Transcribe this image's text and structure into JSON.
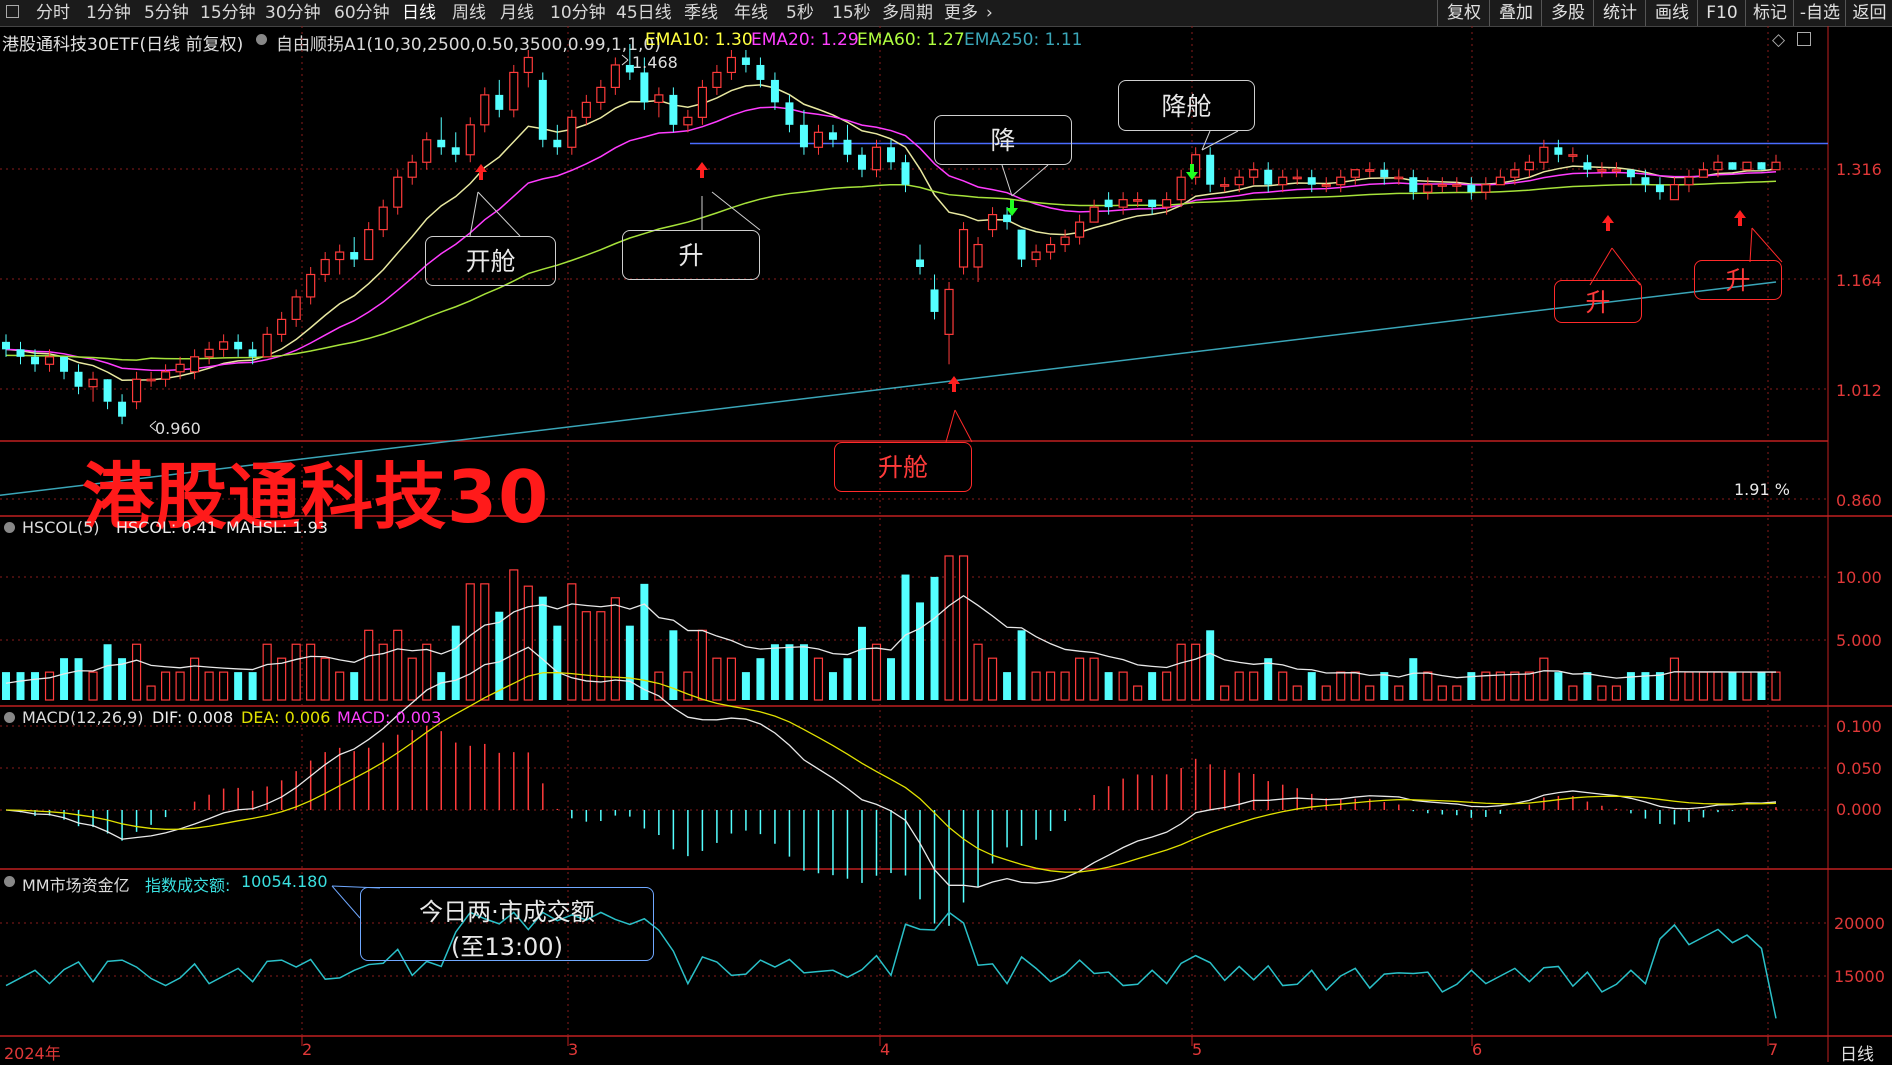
{
  "toolbar": {
    "left_tabs": [
      {
        "label": "分时"
      },
      {
        "label": "1分钟"
      },
      {
        "label": "5分钟"
      },
      {
        "label": "15分钟"
      },
      {
        "label": "30分钟"
      },
      {
        "label": "60分钟"
      },
      {
        "label": "日线",
        "active": true
      },
      {
        "label": "周线"
      },
      {
        "label": "月线"
      },
      {
        "label": "10分钟"
      },
      {
        "label": "45日线"
      },
      {
        "label": "季线"
      },
      {
        "label": "年线"
      },
      {
        "label": "5秒"
      },
      {
        "label": "15秒"
      },
      {
        "label": "多周期"
      },
      {
        "label": "更多"
      }
    ],
    "right_buttons": [
      {
        "label": "复权"
      },
      {
        "label": "叠加"
      },
      {
        "label": "多股"
      },
      {
        "label": "统计"
      },
      {
        "label": "画线"
      },
      {
        "label": "F10"
      },
      {
        "label": "标记"
      },
      {
        "label": "-自选"
      },
      {
        "label": "返回"
      }
    ]
  },
  "main_header": {
    "security": "港股通科技30ETF(日线 前复权)",
    "indicator": "自由顺拐A1(10,30,2500,0.50,3500,0.99,1,1,0)",
    "ema10": "EMA10: 1.30",
    "ema20": "EMA20: 1.29",
    "ema60": "EMA60: 1.27",
    "ema250": "EMA250: 1.11"
  },
  "price_axis": {
    "ticks": [
      "1.316",
      "1.164",
      "1.012",
      "0.860"
    ]
  },
  "price_annotations": {
    "high": "1.468",
    "low": "0.960",
    "pct": "1.91 %"
  },
  "big_title": "港股通科技30",
  "callouts": {
    "kaicang": "开舱",
    "sheng1": "升",
    "jiang": "降",
    "jiangcang": "降舱",
    "shengcang": "升舱",
    "sheng2": "升",
    "sheng3": "升",
    "turnover_line1": "今日两·市成交额",
    "turnover_line2": "(至13:00)"
  },
  "hscol": {
    "name": "HSCOL(5)",
    "value": "HSCOL: 0.41",
    "mahsl": "MAHSL: 1.93",
    "ticks": [
      "10.00",
      "5.000"
    ]
  },
  "macd": {
    "name": "MACD(12,26,9)",
    "dif": "DIF: 0.008",
    "dea": "DEA: 0.006",
    "macd": "MACD: 0.003",
    "ticks": [
      "0.100",
      "0.050",
      "0.000"
    ]
  },
  "mm": {
    "name": "MM市场资金亿",
    "label": "指数成交额:",
    "value": "10054.180",
    "ticks": [
      "20000",
      "15000"
    ]
  },
  "x_axis": {
    "labels": [
      "2024年",
      "2",
      "3",
      "4",
      "5",
      "6",
      "7"
    ],
    "corner": "日线"
  },
  "colors": {
    "up": "#ff3b3b",
    "down": "#54ffff",
    "ema10": "#e8e8a0",
    "ema20": "#ff3cff",
    "ema60": "#a6e23a",
    "ema250": "#3aa6b8",
    "hline": "#4a6cff",
    "grid": "#8a1c1c"
  },
  "chart_data": {
    "type": "candlestick",
    "price": {
      "ylim": [
        0.86,
        1.468
      ],
      "candles": [
        {
          "o": 1.07,
          "h": 1.08,
          "l": 1.05,
          "c": 1.06
        },
        {
          "o": 1.06,
          "h": 1.07,
          "l": 1.04,
          "c": 1.05
        },
        {
          "o": 1.05,
          "h": 1.06,
          "l": 1.03,
          "c": 1.04
        },
        {
          "o": 1.04,
          "h": 1.06,
          "l": 1.03,
          "c": 1.05
        },
        {
          "o": 1.05,
          "h": 1.05,
          "l": 1.02,
          "c": 1.03
        },
        {
          "o": 1.03,
          "h": 1.04,
          "l": 1.0,
          "c": 1.01
        },
        {
          "o": 1.01,
          "h": 1.03,
          "l": 0.99,
          "c": 1.02
        },
        {
          "o": 1.02,
          "h": 1.02,
          "l": 0.98,
          "c": 0.99
        },
        {
          "o": 0.99,
          "h": 1.0,
          "l": 0.96,
          "c": 0.97
        },
        {
          "o": 0.99,
          "h": 1.03,
          "l": 0.98,
          "c": 1.02
        },
        {
          "o": 1.02,
          "h": 1.03,
          "l": 1.01,
          "c": 1.02
        },
        {
          "o": 1.02,
          "h": 1.04,
          "l": 1.01,
          "c": 1.03
        },
        {
          "o": 1.03,
          "h": 1.05,
          "l": 1.02,
          "c": 1.04
        },
        {
          "o": 1.03,
          "h": 1.06,
          "l": 1.02,
          "c": 1.05
        },
        {
          "o": 1.05,
          "h": 1.07,
          "l": 1.04,
          "c": 1.06
        },
        {
          "o": 1.06,
          "h": 1.08,
          "l": 1.05,
          "c": 1.07
        },
        {
          "o": 1.07,
          "h": 1.08,
          "l": 1.05,
          "c": 1.06
        },
        {
          "o": 1.06,
          "h": 1.07,
          "l": 1.04,
          "c": 1.05
        },
        {
          "o": 1.05,
          "h": 1.09,
          "l": 1.05,
          "c": 1.08
        },
        {
          "o": 1.08,
          "h": 1.11,
          "l": 1.07,
          "c": 1.1
        },
        {
          "o": 1.1,
          "h": 1.14,
          "l": 1.09,
          "c": 1.13
        },
        {
          "o": 1.13,
          "h": 1.17,
          "l": 1.12,
          "c": 1.16
        },
        {
          "o": 1.16,
          "h": 1.19,
          "l": 1.15,
          "c": 1.18
        },
        {
          "o": 1.18,
          "h": 1.2,
          "l": 1.16,
          "c": 1.19
        },
        {
          "o": 1.19,
          "h": 1.21,
          "l": 1.17,
          "c": 1.18
        },
        {
          "o": 1.18,
          "h": 1.23,
          "l": 1.18,
          "c": 1.22
        },
        {
          "o": 1.22,
          "h": 1.26,
          "l": 1.21,
          "c": 1.25
        },
        {
          "o": 1.25,
          "h": 1.3,
          "l": 1.24,
          "c": 1.29
        },
        {
          "o": 1.29,
          "h": 1.32,
          "l": 1.28,
          "c": 1.31
        },
        {
          "o": 1.31,
          "h": 1.35,
          "l": 1.3,
          "c": 1.34
        },
        {
          "o": 1.34,
          "h": 1.37,
          "l": 1.32,
          "c": 1.33
        },
        {
          "o": 1.33,
          "h": 1.35,
          "l": 1.31,
          "c": 1.32
        },
        {
          "o": 1.32,
          "h": 1.37,
          "l": 1.31,
          "c": 1.36
        },
        {
          "o": 1.36,
          "h": 1.41,
          "l": 1.35,
          "c": 1.4
        },
        {
          "o": 1.4,
          "h": 1.42,
          "l": 1.37,
          "c": 1.38
        },
        {
          "o": 1.38,
          "h": 1.44,
          "l": 1.37,
          "c": 1.43
        },
        {
          "o": 1.43,
          "h": 1.46,
          "l": 1.41,
          "c": 1.45
        },
        {
          "o": 1.42,
          "h": 1.43,
          "l": 1.33,
          "c": 1.34
        },
        {
          "o": 1.34,
          "h": 1.36,
          "l": 1.32,
          "c": 1.33
        },
        {
          "o": 1.33,
          "h": 1.38,
          "l": 1.32,
          "c": 1.37
        },
        {
          "o": 1.37,
          "h": 1.4,
          "l": 1.36,
          "c": 1.39
        },
        {
          "o": 1.39,
          "h": 1.42,
          "l": 1.38,
          "c": 1.41
        },
        {
          "o": 1.41,
          "h": 1.45,
          "l": 1.4,
          "c": 1.44
        },
        {
          "o": 1.44,
          "h": 1.468,
          "l": 1.42,
          "c": 1.43
        },
        {
          "o": 1.43,
          "h": 1.45,
          "l": 1.38,
          "c": 1.39
        },
        {
          "o": 1.39,
          "h": 1.41,
          "l": 1.37,
          "c": 1.4
        },
        {
          "o": 1.4,
          "h": 1.41,
          "l": 1.35,
          "c": 1.36
        },
        {
          "o": 1.36,
          "h": 1.38,
          "l": 1.35,
          "c": 1.37
        },
        {
          "o": 1.37,
          "h": 1.42,
          "l": 1.36,
          "c": 1.41
        },
        {
          "o": 1.41,
          "h": 1.44,
          "l": 1.4,
          "c": 1.43
        },
        {
          "o": 1.43,
          "h": 1.46,
          "l": 1.42,
          "c": 1.45
        },
        {
          "o": 1.45,
          "h": 1.46,
          "l": 1.43,
          "c": 1.44
        },
        {
          "o": 1.44,
          "h": 1.45,
          "l": 1.41,
          "c": 1.42
        },
        {
          "o": 1.42,
          "h": 1.43,
          "l": 1.38,
          "c": 1.39
        },
        {
          "o": 1.39,
          "h": 1.4,
          "l": 1.35,
          "c": 1.36
        },
        {
          "o": 1.36,
          "h": 1.38,
          "l": 1.32,
          "c": 1.33
        },
        {
          "o": 1.33,
          "h": 1.36,
          "l": 1.32,
          "c": 1.35
        },
        {
          "o": 1.35,
          "h": 1.36,
          "l": 1.33,
          "c": 1.34
        },
        {
          "o": 1.34,
          "h": 1.36,
          "l": 1.31,
          "c": 1.32
        },
        {
          "o": 1.32,
          "h": 1.33,
          "l": 1.29,
          "c": 1.3
        },
        {
          "o": 1.3,
          "h": 1.34,
          "l": 1.29,
          "c": 1.33
        },
        {
          "o": 1.33,
          "h": 1.34,
          "l": 1.3,
          "c": 1.31
        },
        {
          "o": 1.31,
          "h": 1.32,
          "l": 1.27,
          "c": 1.28
        },
        {
          "o": 1.18,
          "h": 1.2,
          "l": 1.16,
          "c": 1.17
        },
        {
          "o": 1.14,
          "h": 1.16,
          "l": 1.1,
          "c": 1.11
        },
        {
          "o": 1.08,
          "h": 1.15,
          "l": 1.04,
          "c": 1.14
        },
        {
          "o": 1.17,
          "h": 1.23,
          "l": 1.16,
          "c": 1.22
        },
        {
          "o": 1.17,
          "h": 1.21,
          "l": 1.15,
          "c": 1.2
        },
        {
          "o": 1.22,
          "h": 1.25,
          "l": 1.21,
          "c": 1.24
        },
        {
          "o": 1.24,
          "h": 1.25,
          "l": 1.22,
          "c": 1.23
        },
        {
          "o": 1.22,
          "h": 1.22,
          "l": 1.17,
          "c": 1.18
        },
        {
          "o": 1.18,
          "h": 1.2,
          "l": 1.17,
          "c": 1.19
        },
        {
          "o": 1.19,
          "h": 1.21,
          "l": 1.18,
          "c": 1.2
        },
        {
          "o": 1.2,
          "h": 1.22,
          "l": 1.19,
          "c": 1.21
        },
        {
          "o": 1.21,
          "h": 1.24,
          "l": 1.2,
          "c": 1.23
        },
        {
          "o": 1.23,
          "h": 1.26,
          "l": 1.23,
          "c": 1.25
        },
        {
          "o": 1.26,
          "h": 1.27,
          "l": 1.24,
          "c": 1.25
        },
        {
          "o": 1.25,
          "h": 1.27,
          "l": 1.24,
          "c": 1.26
        },
        {
          "o": 1.26,
          "h": 1.27,
          "l": 1.25,
          "c": 1.26
        },
        {
          "o": 1.26,
          "h": 1.26,
          "l": 1.24,
          "c": 1.25
        },
        {
          "o": 1.25,
          "h": 1.27,
          "l": 1.24,
          "c": 1.26
        },
        {
          "o": 1.26,
          "h": 1.3,
          "l": 1.25,
          "c": 1.29
        },
        {
          "o": 1.29,
          "h": 1.33,
          "l": 1.28,
          "c": 1.32
        },
        {
          "o": 1.32,
          "h": 1.33,
          "l": 1.27,
          "c": 1.28
        },
        {
          "o": 1.28,
          "h": 1.29,
          "l": 1.27,
          "c": 1.28
        },
        {
          "o": 1.28,
          "h": 1.3,
          "l": 1.27,
          "c": 1.29
        },
        {
          "o": 1.29,
          "h": 1.31,
          "l": 1.28,
          "c": 1.3
        },
        {
          "o": 1.3,
          "h": 1.31,
          "l": 1.27,
          "c": 1.28
        },
        {
          "o": 1.28,
          "h": 1.3,
          "l": 1.27,
          "c": 1.29
        },
        {
          "o": 1.29,
          "h": 1.3,
          "l": 1.28,
          "c": 1.29
        },
        {
          "o": 1.29,
          "h": 1.3,
          "l": 1.27,
          "c": 1.28
        },
        {
          "o": 1.28,
          "h": 1.29,
          "l": 1.27,
          "c": 1.28
        },
        {
          "o": 1.28,
          "h": 1.3,
          "l": 1.27,
          "c": 1.29
        },
        {
          "o": 1.29,
          "h": 1.3,
          "l": 1.28,
          "c": 1.3
        },
        {
          "o": 1.3,
          "h": 1.31,
          "l": 1.29,
          "c": 1.3
        },
        {
          "o": 1.3,
          "h": 1.31,
          "l": 1.28,
          "c": 1.29
        },
        {
          "o": 1.29,
          "h": 1.3,
          "l": 1.28,
          "c": 1.29
        },
        {
          "o": 1.29,
          "h": 1.3,
          "l": 1.26,
          "c": 1.27
        },
        {
          "o": 1.27,
          "h": 1.29,
          "l": 1.26,
          "c": 1.28
        },
        {
          "o": 1.28,
          "h": 1.29,
          "l": 1.27,
          "c": 1.28
        },
        {
          "o": 1.28,
          "h": 1.29,
          "l": 1.27,
          "c": 1.28
        },
        {
          "o": 1.28,
          "h": 1.29,
          "l": 1.26,
          "c": 1.27
        },
        {
          "o": 1.27,
          "h": 1.29,
          "l": 1.26,
          "c": 1.28
        },
        {
          "o": 1.28,
          "h": 1.3,
          "l": 1.28,
          "c": 1.29
        },
        {
          "o": 1.29,
          "h": 1.31,
          "l": 1.28,
          "c": 1.3
        },
        {
          "o": 1.3,
          "h": 1.32,
          "l": 1.29,
          "c": 1.31
        },
        {
          "o": 1.31,
          "h": 1.34,
          "l": 1.3,
          "c": 1.33
        },
        {
          "o": 1.33,
          "h": 1.34,
          "l": 1.31,
          "c": 1.32
        },
        {
          "o": 1.32,
          "h": 1.33,
          "l": 1.31,
          "c": 1.32
        },
        {
          "o": 1.31,
          "h": 1.32,
          "l": 1.29,
          "c": 1.3
        },
        {
          "o": 1.3,
          "h": 1.31,
          "l": 1.29,
          "c": 1.3
        },
        {
          "o": 1.3,
          "h": 1.31,
          "l": 1.29,
          "c": 1.3
        },
        {
          "o": 1.3,
          "h": 1.3,
          "l": 1.28,
          "c": 1.29
        },
        {
          "o": 1.29,
          "h": 1.3,
          "l": 1.27,
          "c": 1.28
        },
        {
          "o": 1.28,
          "h": 1.29,
          "l": 1.26,
          "c": 1.27
        },
        {
          "o": 1.26,
          "h": 1.29,
          "l": 1.26,
          "c": 1.28
        },
        {
          "o": 1.28,
          "h": 1.3,
          "l": 1.27,
          "c": 1.29
        },
        {
          "o": 1.29,
          "h": 1.31,
          "l": 1.29,
          "c": 1.3
        },
        {
          "o": 1.3,
          "h": 1.32,
          "l": 1.29,
          "c": 1.31
        },
        {
          "o": 1.31,
          "h": 1.31,
          "l": 1.3,
          "c": 1.3
        },
        {
          "o": 1.3,
          "h": 1.31,
          "l": 1.3,
          "c": 1.31
        },
        {
          "o": 1.31,
          "h": 1.31,
          "l": 1.3,
          "c": 1.3
        },
        {
          "o": 1.3,
          "h": 1.32,
          "l": 1.3,
          "c": 1.31
        }
      ],
      "hline": 1.335,
      "ema250": {
        "start": 0.865,
        "end": 1.15
      }
    },
    "hscol": {
      "ylim": [
        0,
        13
      ],
      "avg_start": 1.2
    }
  }
}
